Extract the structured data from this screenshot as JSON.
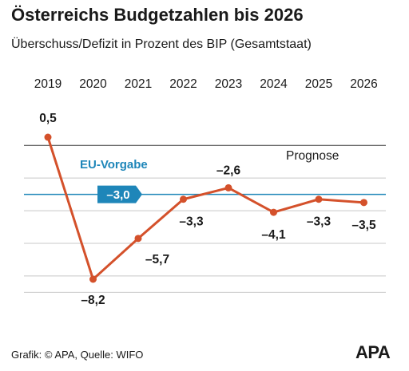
{
  "header": {
    "title": "Österreichs Budgetzahlen bis 2026",
    "subtitle": "Überschuss/Defizit in Prozent des BIP (Gesamtstaat)"
  },
  "chart_data": {
    "type": "line",
    "title": "Österreichs Budgetzahlen bis 2026",
    "subtitle": "Überschuss/Defizit in Prozent des BIP (Gesamtstaat)",
    "x": [
      "2019",
      "2020",
      "2021",
      "2022",
      "2023",
      "2024",
      "2025",
      "2026"
    ],
    "series": [
      {
        "values": [
          0.5,
          -8.2,
          -5.7,
          -3.3,
          -2.6,
          -4.1,
          -3.3,
          -3.5
        ],
        "labels": [
          "0,5",
          "–8,2",
          "–5,7",
          "–3,3",
          "–2,6",
          "–4,1",
          "–3,3",
          "–3,5"
        ],
        "color": "#d4512b"
      }
    ],
    "reference_line": {
      "label": "EU-Vorgabe",
      "value": -3.0,
      "value_label": "–3,0",
      "color": "#1e86b9"
    },
    "annotation": "Prognose",
    "ylim": [
      -10,
      2
    ],
    "grid": true,
    "legend": "none"
  },
  "footer": {
    "source": "Grafik: © APA, Quelle: WIFO",
    "logo_text": "APA"
  }
}
